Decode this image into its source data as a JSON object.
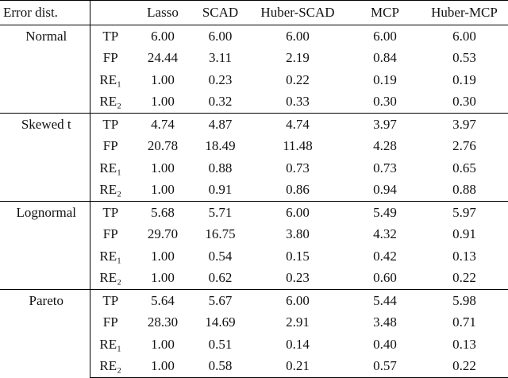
{
  "table": {
    "header": [
      "Error dist.",
      "Lasso",
      "SCAD",
      "Huber-SCAD",
      "MCP",
      "Huber-MCP"
    ],
    "groups": [
      {
        "name": "Normal",
        "rows": [
          {
            "metric": "TP",
            "values": [
              "6.00",
              "6.00",
              "6.00",
              "6.00",
              "6.00"
            ]
          },
          {
            "metric": "FP",
            "values": [
              "24.44",
              "3.11",
              "2.19",
              "0.84",
              "0.53"
            ]
          },
          {
            "metric": "RE₁",
            "values": [
              "1.00",
              "0.23",
              "0.22",
              "0.19",
              "0.19"
            ]
          },
          {
            "metric": "RE₂",
            "values": [
              "1.00",
              "0.32",
              "0.33",
              "0.30",
              "0.30"
            ]
          }
        ]
      },
      {
        "name": "Skewed t",
        "rows": [
          {
            "metric": "TP",
            "values": [
              "4.74",
              "4.87",
              "4.74",
              "3.97",
              "3.97"
            ]
          },
          {
            "metric": "FP",
            "values": [
              "20.78",
              "18.49",
              "11.48",
              "4.28",
              "2.76"
            ]
          },
          {
            "metric": "RE₁",
            "values": [
              "1.00",
              "0.88",
              "0.73",
              "0.73",
              "0.65"
            ]
          },
          {
            "metric": "RE₂",
            "values": [
              "1.00",
              "0.91",
              "0.86",
              "0.94",
              "0.88"
            ]
          }
        ]
      },
      {
        "name": "Lognormal",
        "rows": [
          {
            "metric": "TP",
            "values": [
              "5.68",
              "5.71",
              "6.00",
              "5.49",
              "5.97"
            ]
          },
          {
            "metric": "FP",
            "values": [
              "29.70",
              "16.75",
              "3.80",
              "4.32",
              "0.91"
            ]
          },
          {
            "metric": "RE₁",
            "values": [
              "1.00",
              "0.54",
              "0.15",
              "0.42",
              "0.13"
            ]
          },
          {
            "metric": "RE₂",
            "values": [
              "1.00",
              "0.62",
              "0.23",
              "0.60",
              "0.22"
            ]
          }
        ]
      },
      {
        "name": "Pareto",
        "rows": [
          {
            "metric": "TP",
            "values": [
              "5.64",
              "5.67",
              "6.00",
              "5.44",
              "5.98"
            ]
          },
          {
            "metric": "FP",
            "values": [
              "28.30",
              "14.69",
              "2.91",
              "3.48",
              "0.71"
            ]
          },
          {
            "metric": "RE₁",
            "values": [
              "1.00",
              "0.51",
              "0.14",
              "0.40",
              "0.13"
            ]
          },
          {
            "metric": "RE₂",
            "values": [
              "1.00",
              "0.58",
              "0.21",
              "0.57",
              "0.22"
            ]
          }
        ]
      }
    ]
  }
}
